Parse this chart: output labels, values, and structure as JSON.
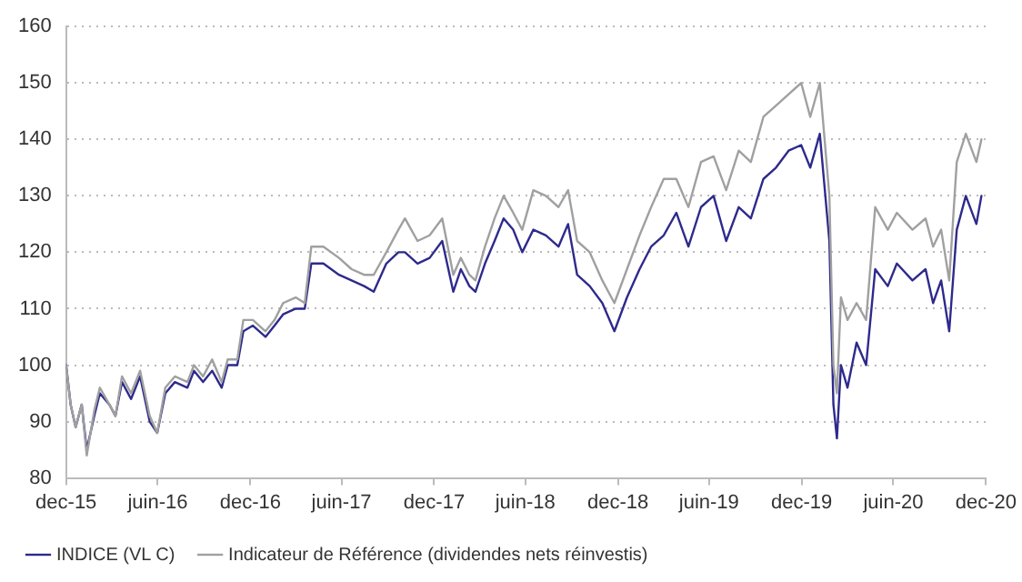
{
  "chart_data": {
    "type": "line",
    "xlim": [
      "2015-12-31",
      "2020-12-31"
    ],
    "xticks": [
      {
        "value": "2015-12-31",
        "label": "dec-15"
      },
      {
        "value": "2016-06-30",
        "label": "juin-16"
      },
      {
        "value": "2016-12-31",
        "label": "dec-16"
      },
      {
        "value": "2017-06-30",
        "label": "juin-17"
      },
      {
        "value": "2017-12-31",
        "label": "dec-17"
      },
      {
        "value": "2018-06-30",
        "label": "juin-18"
      },
      {
        "value": "2018-12-31",
        "label": "dec-18"
      },
      {
        "value": "2019-06-30",
        "label": "juin-19"
      },
      {
        "value": "2019-12-31",
        "label": "dec-19"
      },
      {
        "value": "2020-06-30",
        "label": "juin-20"
      },
      {
        "value": "2020-12-31",
        "label": "dec-20"
      }
    ],
    "ylim": [
      80,
      160
    ],
    "yticks": [
      80,
      90,
      100,
      110,
      120,
      130,
      140,
      150,
      160
    ],
    "grid": "y",
    "legend": "bottom",
    "marker": "none",
    "line_style": "solid",
    "x": [
      "2015-12-31",
      "2016-01-09",
      "2016-01-19",
      "2016-01-31",
      "2016-02-10",
      "2016-02-25",
      "2016-03-07",
      "2016-03-26",
      "2016-04-07",
      "2016-04-20",
      "2016-05-08",
      "2016-05-26",
      "2016-06-14",
      "2016-06-29",
      "2016-07-15",
      "2016-08-03",
      "2016-08-28",
      "2016-09-10",
      "2016-09-28",
      "2016-10-16",
      "2016-11-04",
      "2016-11-16",
      "2016-12-05",
      "2016-12-17",
      "2017-01-05",
      "2017-01-30",
      "2017-02-17",
      "2017-03-06",
      "2017-03-31",
      "2017-04-18",
      "2017-05-01",
      "2017-05-25",
      "2017-06-25",
      "2017-07-20",
      "2017-08-14",
      "2017-09-02",
      "2017-09-27",
      "2017-10-21",
      "2017-11-03",
      "2017-11-28",
      "2017-12-22",
      "2018-01-16",
      "2018-02-07",
      "2018-02-22",
      "2018-03-11",
      "2018-03-23",
      "2018-04-11",
      "2018-04-30",
      "2018-05-18",
      "2018-06-06",
      "2018-06-24",
      "2018-07-16",
      "2018-08-10",
      "2018-09-04",
      "2018-09-23",
      "2018-10-11",
      "2018-11-05",
      "2018-11-30",
      "2018-12-24",
      "2019-01-18",
      "2019-02-12",
      "2019-03-07",
      "2019-04-01",
      "2019-04-26",
      "2019-05-20",
      "2019-06-14",
      "2019-07-09",
      "2019-08-03",
      "2019-08-28",
      "2019-09-21",
      "2019-10-16",
      "2019-11-10",
      "2019-12-05",
      "2019-12-30",
      "2020-01-17",
      "2020-02-05",
      "2020-02-24",
      "2020-03-03",
      "2020-03-10",
      "2020-03-18",
      "2020-03-31",
      "2020-04-18",
      "2020-05-07",
      "2020-05-25",
      "2020-06-19",
      "2020-07-07",
      "2020-08-07",
      "2020-09-02",
      "2020-09-17",
      "2020-10-03",
      "2020-10-19",
      "2020-11-03",
      "2020-11-21",
      "2020-12-12",
      "2020-12-22"
    ],
    "series": [
      {
        "name": "INDICE (VL C)",
        "color": "#2e2a8c",
        "values": [
          100,
          93,
          89,
          93,
          85,
          91,
          95,
          93,
          91,
          97,
          94,
          98,
          90,
          88,
          95,
          97,
          96,
          99,
          97,
          99,
          96,
          100,
          100,
          106,
          107,
          105,
          107,
          109,
          110,
          110,
          118,
          118,
          116,
          115,
          114,
          113,
          118,
          120,
          120,
          118,
          119,
          122,
          113,
          117,
          114,
          113,
          118,
          122,
          126,
          124,
          120,
          124,
          123,
          121,
          125,
          116,
          114,
          111,
          106,
          112,
          117,
          121,
          123,
          127,
          121,
          128,
          130,
          122,
          128,
          126,
          133,
          135,
          138,
          139,
          135,
          141,
          122,
          93,
          87,
          100,
          96,
          104,
          100,
          117,
          114,
          118,
          115,
          117,
          111,
          115,
          106,
          124,
          130,
          125,
          130
        ]
      },
      {
        "name": "Indicateur de Référence (dividendes nets réinvestis)",
        "color": "#a0a0a0",
        "values": [
          100,
          93,
          89,
          93,
          84,
          92,
          96,
          93,
          91,
          98,
          95,
          99,
          91,
          88,
          96,
          98,
          97,
          100,
          98,
          101,
          97,
          101,
          101,
          108,
          108,
          106,
          108,
          111,
          112,
          111,
          121,
          121,
          119,
          117,
          116,
          116,
          120,
          124,
          126,
          122,
          123,
          126,
          116,
          119,
          116,
          115,
          121,
          126,
          130,
          127,
          124,
          131,
          130,
          128,
          131,
          122,
          120,
          115,
          111,
          117,
          123,
          128,
          133,
          133,
          128,
          136,
          137,
          131,
          138,
          136,
          144,
          146,
          148,
          150,
          144,
          150,
          130,
          100,
          95,
          112,
          108,
          111,
          108,
          128,
          124,
          127,
          124,
          126,
          121,
          124,
          115,
          136,
          141,
          136,
          140
        ]
      }
    ]
  }
}
